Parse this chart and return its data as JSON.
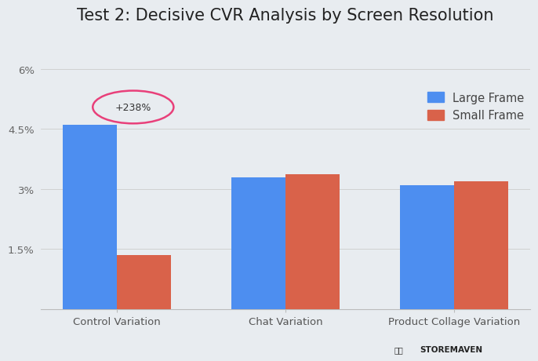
{
  "title": "Test 2: Decisive CVR Analysis by Screen Resolution",
  "categories": [
    "Control Variation",
    "Chat Variation",
    "Product Collage Variation"
  ],
  "large_frame": [
    4.6,
    3.3,
    3.1
  ],
  "small_frame": [
    1.35,
    3.38,
    3.2
  ],
  "bar_color_large": "#4d8ef0",
  "bar_color_small": "#d9624a",
  "background_color": "#e8ecf0",
  "yticks": [
    0,
    1.5,
    3.0,
    4.5,
    6.0
  ],
  "ytick_labels": [
    "",
    "1.5%",
    "3%",
    "4.5%",
    "6%"
  ],
  "ylim": [
    0,
    6.8
  ],
  "annotation_text": "+238%",
  "legend_labels": [
    "Large Frame",
    "Small Frame"
  ],
  "bar_width": 0.32,
  "title_fontsize": 15,
  "tick_fontsize": 9.5,
  "legend_fontsize": 10.5
}
